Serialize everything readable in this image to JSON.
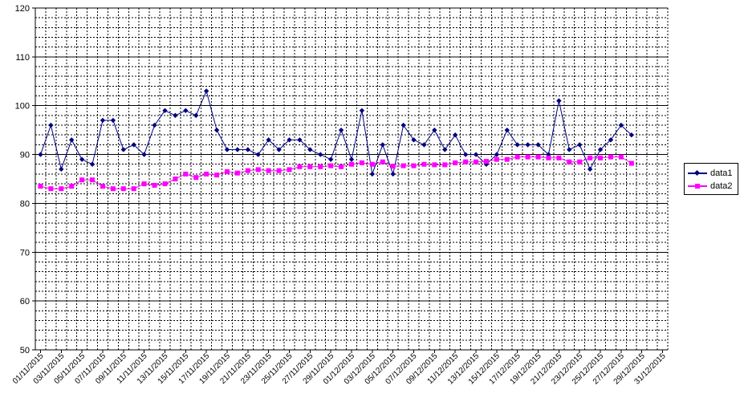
{
  "chart_data": {
    "type": "line",
    "title": "",
    "xlabel": "",
    "ylabel": "",
    "ylim": [
      50,
      120
    ],
    "yticks": [
      50,
      60,
      70,
      80,
      90,
      100,
      110,
      120
    ],
    "x_tick_labels": [
      "01/11/2015",
      "03/11/2015",
      "05/11/2015",
      "07/11/2015",
      "09/11/2015",
      "11/11/2015",
      "13/11/2015",
      "15/11/2015",
      "17/11/2015",
      "19/11/2015",
      "21/11/2015",
      "23/11/2015",
      "25/11/2015",
      "27/11/2015",
      "29/11/2015",
      "01/12/2015",
      "03/12/2015",
      "05/12/2015",
      "07/12/2015",
      "09/12/2015",
      "11/12/2015",
      "13/12/2015",
      "15/12/2015",
      "17/12/2015",
      "19/12/2015",
      "21/12/2015",
      "23/12/2015",
      "25/12/2015",
      "27/12/2015",
      "29/12/2015",
      "31/12/2015"
    ],
    "x_start": "2015-11-01",
    "x_end": "2015-12-31",
    "grid": {
      "major_y": true,
      "minor_y": true,
      "minor_x": true
    },
    "legend_position": "right",
    "series": [
      {
        "name": "data1",
        "color": "#000080",
        "marker": "diamond",
        "start": "2015-11-01",
        "values": [
          90,
          96,
          87,
          93,
          89,
          88,
          97,
          97,
          91,
          92,
          90,
          96,
          99,
          98,
          99,
          98,
          103,
          95,
          91,
          91,
          91,
          90,
          93,
          91,
          93,
          93,
          91,
          90,
          89,
          95,
          89,
          99,
          86,
          92,
          86,
          96,
          93,
          92,
          95,
          91,
          94,
          90,
          90,
          88,
          90,
          95,
          92,
          92,
          92,
          90,
          101,
          91,
          92,
          87,
          91,
          93,
          96,
          94
        ]
      },
      {
        "name": "data2",
        "color": "#ff00ff",
        "marker": "square",
        "start": "2015-11-01",
        "values": [
          83.5,
          83,
          83,
          83.5,
          84.8,
          84.8,
          83.5,
          83,
          83,
          83,
          84,
          83.7,
          84,
          85,
          86,
          85.3,
          86,
          85.8,
          86.5,
          86.2,
          86.7,
          86.9,
          86.7,
          86.7,
          86.9,
          87.5,
          87.5,
          87.5,
          87.7,
          87.5,
          88,
          88.3,
          88,
          88.5,
          87.6,
          87.7,
          87.7,
          88,
          87.9,
          87.9,
          88.3,
          88.5,
          88.5,
          88.6,
          89,
          89,
          89.5,
          89.5,
          89.5,
          89.3,
          89.3,
          88.5,
          88.5,
          89.3,
          89.3,
          89.5,
          89.5,
          88.2
        ]
      }
    ]
  }
}
